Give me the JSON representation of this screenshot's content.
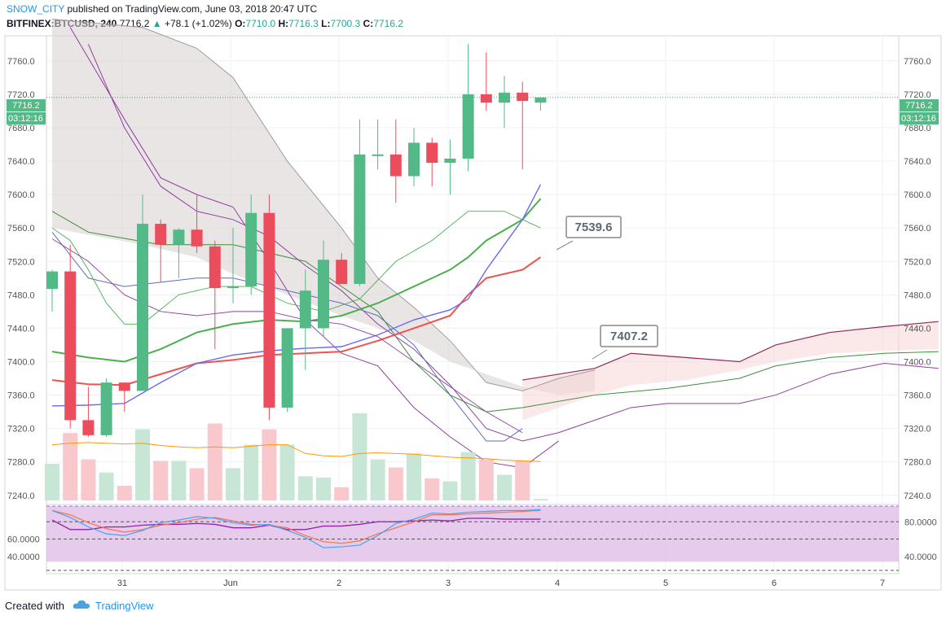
{
  "header": {
    "user": "SNOW_CITY",
    "published_text": "published on TradingView.com, June 03, 2018 20:47 UTC",
    "symbol": "BITFINEX:BTCUSD, 240",
    "last": "7716.2",
    "change": "+78.1 (+1.02%)",
    "change_arrow": "▲",
    "o_label": "O:",
    "o_value": "7710.0",
    "h_label": "H:",
    "h_value": "7716.3",
    "l_label": "L:",
    "l_value": "7700.3",
    "c_label": "C:",
    "c_value": "7716.2"
  },
  "footer": {
    "created_with": "Created with",
    "brand": "TradingView"
  },
  "colors": {
    "up": "#26a69a",
    "up_fill": "#53b987",
    "down": "#ef5350",
    "down_fill": "#eb4d5c",
    "vol_up": "#c8e6d5",
    "vol_down": "#f8c8cc",
    "ma_red": "#ef5350",
    "ma_green": "#4caf50",
    "ma_blue": "#6a6af0",
    "ma_purple": "#8e3f9e",
    "kumo_bear": "#d9cfcf",
    "kumo_bull": "#f8d6d6",
    "stoch_fill": "#e1bee7"
  },
  "chart_data": {
    "type": "candlestick",
    "price_axis": {
      "min": 7232,
      "max": 7790,
      "ticks": [
        7240,
        7280,
        7320,
        7360,
        7400,
        7440,
        7480,
        7520,
        7560,
        7600,
        7640,
        7680,
        7720,
        7760
      ]
    },
    "tick_labels": [
      "7240.0",
      "7280.0",
      "7320.0",
      "7360.0",
      "7400.0",
      "7440.0",
      "7480.0",
      "7520.0",
      "7560.0",
      "7600.0",
      "7640.0",
      "7680.0",
      "7720.0",
      "7760.0"
    ],
    "x_labels": [
      "31",
      "Jun",
      "2",
      "3",
      "4",
      "5",
      "6",
      "7"
    ],
    "last_price_tag": "7716.2",
    "countdown_tag": "03:12:16",
    "annotations": [
      "7539.6",
      "7407.2"
    ],
    "candles": [
      {
        "o": 7487,
        "h": 7510,
        "l": 7460,
        "c": 7508
      },
      {
        "o": 7508,
        "h": 7540,
        "l": 7320,
        "c": 7330
      },
      {
        "o": 7330,
        "h": 7370,
        "l": 7310,
        "c": 7312
      },
      {
        "o": 7312,
        "h": 7380,
        "l": 7310,
        "c": 7375
      },
      {
        "o": 7375,
        "h": 7375,
        "l": 7340,
        "c": 7365
      },
      {
        "o": 7365,
        "h": 7600,
        "l": 7365,
        "c": 7565
      },
      {
        "o": 7565,
        "h": 7570,
        "l": 7495,
        "c": 7540
      },
      {
        "o": 7540,
        "h": 7560,
        "l": 7500,
        "c": 7558
      },
      {
        "o": 7558,
        "h": 7600,
        "l": 7530,
        "c": 7538
      },
      {
        "o": 7538,
        "h": 7545,
        "l": 7415,
        "c": 7488
      },
      {
        "o": 7488,
        "h": 7560,
        "l": 7470,
        "c": 7490
      },
      {
        "o": 7490,
        "h": 7600,
        "l": 7480,
        "c": 7578
      },
      {
        "o": 7578,
        "h": 7600,
        "l": 7330,
        "c": 7345
      },
      {
        "o": 7345,
        "h": 7440,
        "l": 7340,
        "c": 7440
      },
      {
        "o": 7440,
        "h": 7510,
        "l": 7390,
        "c": 7485
      },
      {
        "o": 7440,
        "h": 7545,
        "l": 7430,
        "c": 7522
      },
      {
        "o": 7522,
        "h": 7530,
        "l": 7495,
        "c": 7493
      },
      {
        "o": 7493,
        "h": 7690,
        "l": 7490,
        "c": 7648
      },
      {
        "o": 7648,
        "h": 7690,
        "l": 7630,
        "c": 7648
      },
      {
        "o": 7648,
        "h": 7690,
        "l": 7590,
        "c": 7622
      },
      {
        "o": 7622,
        "h": 7680,
        "l": 7610,
        "c": 7662
      },
      {
        "o": 7662,
        "h": 7668,
        "l": 7610,
        "c": 7638
      },
      {
        "o": 7638,
        "h": 7666,
        "l": 7600,
        "c": 7643
      },
      {
        "o": 7643,
        "h": 7780,
        "l": 7628,
        "c": 7720
      },
      {
        "o": 7720,
        "h": 7770,
        "l": 7700,
        "c": 7710
      },
      {
        "o": 7710,
        "h": 7742,
        "l": 7680,
        "c": 7722
      },
      {
        "o": 7722,
        "h": 7735,
        "l": 7630,
        "c": 7712
      },
      {
        "o": 7710,
        "h": 7716.3,
        "l": 7700.3,
        "c": 7716.2
      }
    ],
    "volume": [
      0.5,
      0.92,
      0.56,
      0.38,
      0.2,
      0.97,
      0.54,
      0.54,
      0.44,
      1.05,
      0.44,
      0.76,
      0.97,
      0.76,
      0.33,
      0.31,
      0.18,
      1.19,
      0.56,
      0.45,
      0.64,
      0.3,
      0.26,
      0.66,
      0.56,
      0.35,
      0.54,
      0.02
    ],
    "volume_ma": [
      0.76,
      0.78,
      0.79,
      0.78,
      0.77,
      0.78,
      0.75,
      0.73,
      0.72,
      0.73,
      0.72,
      0.74,
      0.76,
      0.76,
      0.64,
      0.61,
      0.6,
      0.64,
      0.65,
      0.64,
      0.63,
      0.61,
      0.59,
      0.58,
      0.57,
      0.55,
      0.54,
      0.53
    ],
    "stoch_axis": {
      "min": 20,
      "max": 100,
      "ticks": [
        40,
        60,
        80
      ],
      "tick_labels": [
        "40.0000",
        "60.0000",
        "80.0000"
      ],
      "band": [
        30,
        100
      ]
    }
  }
}
